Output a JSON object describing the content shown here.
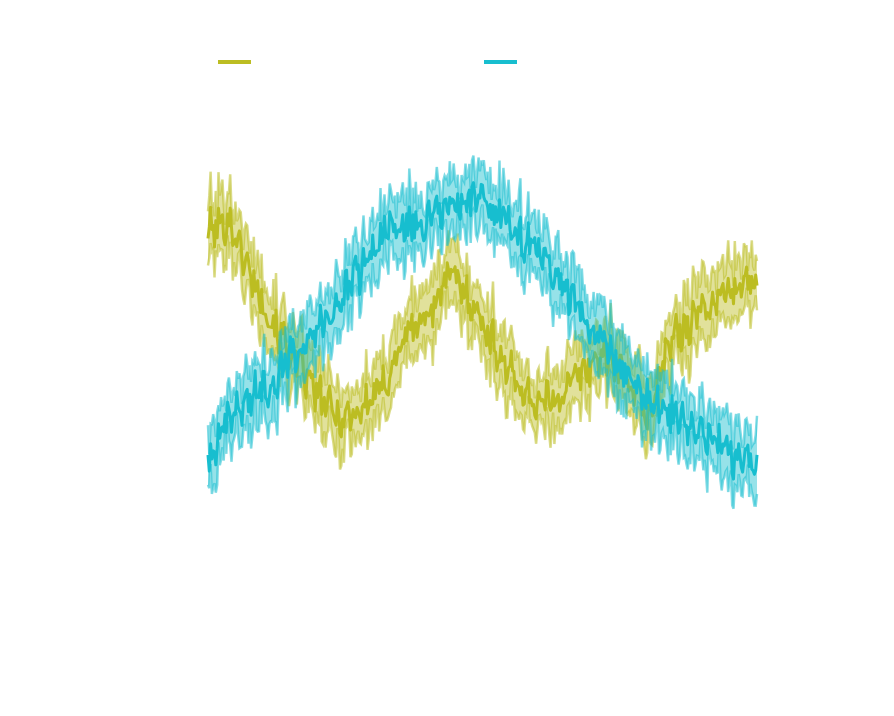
{
  "chart_data": {
    "type": "line",
    "title": "",
    "xlabel": "",
    "ylabel": "",
    "axes_visible": false,
    "grid": false,
    "legend_position": "top",
    "xlim": [
      0,
      100
    ],
    "ylim": [
      0,
      100
    ],
    "x": [
      0,
      4,
      8,
      12,
      16,
      20,
      24,
      28,
      32,
      36,
      40,
      44,
      48,
      52,
      56,
      60,
      64,
      68,
      72,
      76,
      80,
      84,
      88,
      92,
      96,
      100
    ],
    "series": [
      {
        "name": "",
        "color": "#bcbd22",
        "values": [
          70,
          72,
          60,
          50,
          42,
          35,
          30,
          32,
          37,
          48,
          52,
          61,
          55,
          46,
          38,
          33,
          35,
          40,
          44,
          40,
          30,
          46,
          51,
          55,
          58,
          60
        ],
        "band": 6
      },
      {
        "name": "",
        "color": "#17becf",
        "values": [
          20,
          30,
          35,
          38,
          45,
          50,
          55,
          62,
          70,
          71,
          72,
          75,
          77,
          74,
          70,
          65,
          60,
          52,
          46,
          40,
          34,
          32,
          28,
          25,
          22,
          20
        ],
        "band": 6
      }
    ]
  }
}
